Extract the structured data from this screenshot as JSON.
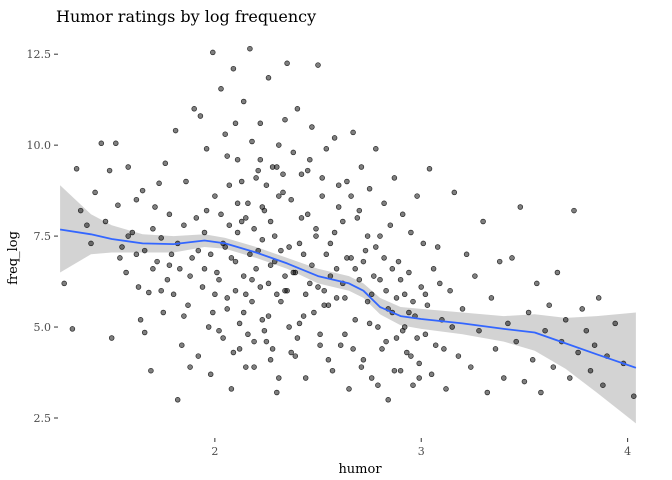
{
  "chart_data": {
    "type": "scatter",
    "title": "Humor ratings by log frequency",
    "xlabel": "humor",
    "ylabel": "freq_log",
    "xlim": [
      1.24,
      4.06
    ],
    "ylim": [
      1.95,
      13.0
    ],
    "x_ticks": [
      {
        "value": 2,
        "label": "2"
      },
      {
        "value": 3,
        "label": "3"
      },
      {
        "value": 4,
        "label": "4"
      }
    ],
    "y_ticks": [
      {
        "value": 2.5,
        "label": "2.5"
      },
      {
        "value": 5.0,
        "label": "5.0"
      },
      {
        "value": 7.5,
        "label": "7.5"
      },
      {
        "value": 10.0,
        "label": "10.0"
      },
      {
        "value": 12.5,
        "label": "12.5"
      }
    ],
    "grid": false,
    "colors": {
      "points_fill": "#000000",
      "points_stroke": "#000000",
      "smooth_line": "#3366FF",
      "ribbon": "#c8c8c8"
    },
    "smooth_line": [
      {
        "x": 1.25,
        "y": 7.68,
        "lo": 6.5,
        "hi": 8.9
      },
      {
        "x": 1.4,
        "y": 7.55,
        "lo": 7.0,
        "hi": 8.1
      },
      {
        "x": 1.5,
        "y": 7.42,
        "lo": 7.05,
        "hi": 7.8
      },
      {
        "x": 1.65,
        "y": 7.3,
        "lo": 7.05,
        "hi": 7.55
      },
      {
        "x": 1.8,
        "y": 7.28,
        "lo": 7.05,
        "hi": 7.5
      },
      {
        "x": 1.95,
        "y": 7.38,
        "lo": 7.2,
        "hi": 7.55
      },
      {
        "x": 2.05,
        "y": 7.3,
        "lo": 7.15,
        "hi": 7.45
      },
      {
        "x": 2.2,
        "y": 7.05,
        "lo": 6.9,
        "hi": 7.2
      },
      {
        "x": 2.35,
        "y": 6.75,
        "lo": 6.6,
        "hi": 6.9
      },
      {
        "x": 2.5,
        "y": 6.4,
        "lo": 6.2,
        "hi": 6.6
      },
      {
        "x": 2.65,
        "y": 6.2,
        "lo": 6.0,
        "hi": 6.4
      },
      {
        "x": 2.72,
        "y": 6.0,
        "lo": 5.8,
        "hi": 6.2
      },
      {
        "x": 2.8,
        "y": 5.55,
        "lo": 5.35,
        "hi": 5.8
      },
      {
        "x": 2.9,
        "y": 5.3,
        "lo": 5.05,
        "hi": 5.55
      },
      {
        "x": 3.0,
        "y": 5.22,
        "lo": 4.95,
        "hi": 5.5
      },
      {
        "x": 3.2,
        "y": 5.1,
        "lo": 4.8,
        "hi": 5.4
      },
      {
        "x": 3.4,
        "y": 4.95,
        "lo": 4.6,
        "hi": 5.3
      },
      {
        "x": 3.55,
        "y": 4.85,
        "lo": 4.35,
        "hi": 5.35
      },
      {
        "x": 3.7,
        "y": 4.55,
        "lo": 3.85,
        "hi": 5.25
      },
      {
        "x": 3.85,
        "y": 4.25,
        "lo": 3.2,
        "hi": 5.3
      },
      {
        "x": 4.04,
        "y": 3.88,
        "lo": 2.35,
        "hi": 5.4
      }
    ],
    "points": [
      [
        1.27,
        6.2
      ],
      [
        1.31,
        4.95
      ],
      [
        1.33,
        9.35
      ],
      [
        1.35,
        8.2
      ],
      [
        1.38,
        7.8
      ],
      [
        1.4,
        7.3
      ],
      [
        1.42,
        8.7
      ],
      [
        1.45,
        10.05
      ],
      [
        1.47,
        7.9
      ],
      [
        1.49,
        9.3
      ],
      [
        1.5,
        4.7
      ],
      [
        1.52,
        10.05
      ],
      [
        1.53,
        8.35
      ],
      [
        1.55,
        7.2
      ],
      [
        1.57,
        6.5
      ],
      [
        1.58,
        9.4
      ],
      [
        1.6,
        7.6
      ],
      [
        1.62,
        8.5
      ],
      [
        1.63,
        6.1
      ],
      [
        1.64,
        5.2
      ],
      [
        1.65,
        8.75
      ],
      [
        1.66,
        4.85
      ],
      [
        1.68,
        5.95
      ],
      [
        1.69,
        3.8
      ],
      [
        1.7,
        7.7
      ],
      [
        1.71,
        8.3
      ],
      [
        1.72,
        6.8
      ],
      [
        1.73,
        8.95
      ],
      [
        1.74,
        7.45
      ],
      [
        1.75,
        5.4
      ],
      [
        1.76,
        9.5
      ],
      [
        1.77,
        6.3
      ],
      [
        1.78,
        8.1
      ],
      [
        1.79,
        7.0
      ],
      [
        1.8,
        5.9
      ],
      [
        1.81,
        10.4
      ],
      [
        1.82,
        3.0
      ],
      [
        1.83,
        6.6
      ],
      [
        1.84,
        4.5
      ],
      [
        1.85,
        7.8
      ],
      [
        1.86,
        9.0
      ],
      [
        1.87,
        5.6
      ],
      [
        1.88,
        3.9
      ],
      [
        1.89,
        6.9
      ],
      [
        1.9,
        11.0
      ],
      [
        1.91,
        8.0
      ],
      [
        1.92,
        4.2
      ],
      [
        1.93,
        10.8
      ],
      [
        1.94,
        6.1
      ],
      [
        1.95,
        7.6
      ],
      [
        1.96,
        9.9
      ],
      [
        1.97,
        5.0
      ],
      [
        1.98,
        3.7
      ],
      [
        1.99,
        12.55
      ],
      [
        2.0,
        8.6
      ],
      [
        2.01,
        6.5
      ],
      [
        2.02,
        4.9
      ],
      [
        2.03,
        11.55
      ],
      [
        2.04,
        7.3
      ],
      [
        2.05,
        10.3
      ],
      [
        2.06,
        5.5
      ],
      [
        2.07,
        8.9
      ],
      [
        2.08,
        3.3
      ],
      [
        2.09,
        12.1
      ],
      [
        2.1,
        6.8
      ],
      [
        2.11,
        9.6
      ],
      [
        2.12,
        4.4
      ],
      [
        2.13,
        7.9
      ],
      [
        2.14,
        11.2
      ],
      [
        2.15,
        5.9
      ],
      [
        2.16,
        8.4
      ],
      [
        2.17,
        12.65
      ],
      [
        2.18,
        6.3
      ],
      [
        2.19,
        3.9
      ],
      [
        2.2,
        9.1
      ],
      [
        2.21,
        7.1
      ],
      [
        2.22,
        10.6
      ],
      [
        2.23,
        5.2
      ],
      [
        2.24,
        8.2
      ],
      [
        2.25,
        4.6
      ],
      [
        2.26,
        11.85
      ],
      [
        2.27,
        6.7
      ],
      [
        2.28,
        9.4
      ],
      [
        2.29,
        7.5
      ],
      [
        2.3,
        3.2
      ],
      [
        2.31,
        10.0
      ],
      [
        2.32,
        5.7
      ],
      [
        2.33,
        8.7
      ],
      [
        2.34,
        6.0
      ],
      [
        2.35,
        12.25
      ],
      [
        2.36,
        7.2
      ],
      [
        2.37,
        4.3
      ],
      [
        2.38,
        9.8
      ],
      [
        2.39,
        6.5
      ],
      [
        2.4,
        11.0
      ],
      [
        2.41,
        5.1
      ],
      [
        2.42,
        8.0
      ],
      [
        2.43,
        7.0
      ],
      [
        2.44,
        3.6
      ],
      [
        2.45,
        9.3
      ],
      [
        2.46,
        6.2
      ],
      [
        2.47,
        10.5
      ],
      [
        2.48,
        5.4
      ],
      [
        2.49,
        7.7
      ],
      [
        2.5,
        12.2
      ],
      [
        2.51,
        4.8
      ],
      [
        2.52,
        8.6
      ],
      [
        2.53,
        6.0
      ],
      [
        2.54,
        9.9
      ],
      [
        2.55,
        5.6
      ],
      [
        2.56,
        7.3
      ],
      [
        2.57,
        3.8
      ],
      [
        2.58,
        10.2
      ],
      [
        2.59,
        6.6
      ],
      [
        2.6,
        8.3
      ],
      [
        2.61,
        4.5
      ],
      [
        2.62,
        7.9
      ],
      [
        2.63,
        5.8
      ],
      [
        2.64,
        9.0
      ],
      [
        2.65,
        3.3
      ],
      [
        2.66,
        6.9
      ],
      [
        2.67,
        10.35
      ],
      [
        2.68,
        5.2
      ],
      [
        2.69,
        8.0
      ],
      [
        2.7,
        6.3
      ],
      [
        2.71,
        9.4
      ],
      [
        2.72,
        4.1
      ],
      [
        2.73,
        7.1
      ],
      [
        2.74,
        5.7
      ],
      [
        2.75,
        8.8
      ],
      [
        2.76,
        3.6
      ],
      [
        2.77,
        6.4
      ],
      [
        2.78,
        9.9
      ],
      [
        2.79,
        5.0
      ],
      [
        2.8,
        7.5
      ],
      [
        2.81,
        4.4
      ],
      [
        2.82,
        8.4
      ],
      [
        2.83,
        6.0
      ],
      [
        2.84,
        3.0
      ],
      [
        2.85,
        7.8
      ],
      [
        2.86,
        5.4
      ],
      [
        2.87,
        9.1
      ],
      [
        2.88,
        4.7
      ],
      [
        2.89,
        6.8
      ],
      [
        2.9,
        3.8
      ],
      [
        2.91,
        8.1
      ],
      [
        2.92,
        5.9
      ],
      [
        2.93,
        4.3
      ],
      [
        2.94,
        6.5
      ],
      [
        2.95,
        7.6
      ],
      [
        2.96,
        3.4
      ],
      [
        2.97,
        5.3
      ],
      [
        2.98,
        8.6
      ],
      [
        2.99,
        4.0
      ],
      [
        3.0,
        6.1
      ],
      [
        3.01,
        7.3
      ],
      [
        3.02,
        4.8
      ],
      [
        3.03,
        5.6
      ],
      [
        3.04,
        9.35
      ],
      [
        3.05,
        3.7
      ],
      [
        3.06,
        6.6
      ],
      [
        3.07,
        4.5
      ],
      [
        3.08,
        7.2
      ],
      [
        3.1,
        5.2
      ],
      [
        3.12,
        3.3
      ],
      [
        3.14,
        6.0
      ],
      [
        3.16,
        8.7
      ],
      [
        3.18,
        4.2
      ],
      [
        3.2,
        5.5
      ],
      [
        3.22,
        7.0
      ],
      [
        3.24,
        3.9
      ],
      [
        3.26,
        6.4
      ],
      [
        3.28,
        4.9
      ],
      [
        3.3,
        7.9
      ],
      [
        3.32,
        3.2
      ],
      [
        3.34,
        5.8
      ],
      [
        3.36,
        4.4
      ],
      [
        3.38,
        6.8
      ],
      [
        3.4,
        3.6
      ],
      [
        3.42,
        5.1
      ],
      [
        3.44,
        6.9
      ],
      [
        3.46,
        4.6
      ],
      [
        3.48,
        8.3
      ],
      [
        3.5,
        3.5
      ],
      [
        3.52,
        5.4
      ],
      [
        3.54,
        4.1
      ],
      [
        3.56,
        6.2
      ],
      [
        3.58,
        3.2
      ],
      [
        3.6,
        4.9
      ],
      [
        3.62,
        5.6
      ],
      [
        3.64,
        3.9
      ],
      [
        3.66,
        6.5
      ],
      [
        3.68,
        4.6
      ],
      [
        3.7,
        5.2
      ],
      [
        3.72,
        3.6
      ],
      [
        3.74,
        8.2
      ],
      [
        3.76,
        4.3
      ],
      [
        3.78,
        5.5
      ],
      [
        3.8,
        4.9
      ],
      [
        3.82,
        3.8
      ],
      [
        3.84,
        4.5
      ],
      [
        3.86,
        5.8
      ],
      [
        3.88,
        3.4
      ],
      [
        3.9,
        4.2
      ],
      [
        3.94,
        5.1
      ],
      [
        3.98,
        4.0
      ],
      [
        4.03,
        3.1
      ],
      [
        2.05,
        7.2
      ],
      [
        2.08,
        6.9
      ],
      [
        2.11,
        7.6
      ],
      [
        2.14,
        6.4
      ],
      [
        2.17,
        7.0
      ],
      [
        2.2,
        6.6
      ],
      [
        2.23,
        7.4
      ],
      [
        2.26,
        6.2
      ],
      [
        2.29,
        6.8
      ],
      [
        2.32,
        7.1
      ],
      [
        2.35,
        6.0
      ],
      [
        2.38,
        6.5
      ],
      [
        2.41,
        7.3
      ],
      [
        2.44,
        5.9
      ],
      [
        2.47,
        6.7
      ],
      [
        2.5,
        6.1
      ],
      [
        2.53,
        5.6
      ],
      [
        2.56,
        6.4
      ],
      [
        2.59,
        5.8
      ],
      [
        2.62,
        6.2
      ],
      [
        1.98,
        7.0
      ],
      [
        2.02,
        6.3
      ],
      [
        2.06,
        5.8
      ],
      [
        2.1,
        6.0
      ],
      [
        2.14,
        5.4
      ],
      [
        2.18,
        5.7
      ],
      [
        2.22,
        6.1
      ],
      [
        2.26,
        5.3
      ],
      [
        2.3,
        5.9
      ],
      [
        2.34,
        6.4
      ],
      [
        1.95,
        6.6
      ],
      [
        1.99,
        5.4
      ],
      [
        2.03,
        8.1
      ],
      [
        2.07,
        7.8
      ],
      [
        2.11,
        8.4
      ],
      [
        2.15,
        8.0
      ],
      [
        2.19,
        7.7
      ],
      [
        2.23,
        8.3
      ],
      [
        2.27,
        7.9
      ],
      [
        2.31,
        8.6
      ],
      [
        1.92,
        7.1
      ],
      [
        1.96,
        8.2
      ],
      [
        2.0,
        5.9
      ],
      [
        2.04,
        4.7
      ],
      [
        2.12,
        5.1
      ],
      [
        2.16,
        4.8
      ],
      [
        2.24,
        4.9
      ],
      [
        2.28,
        4.4
      ],
      [
        2.36,
        5.0
      ],
      [
        2.4,
        4.7
      ],
      [
        2.13,
        9.0
      ],
      [
        2.21,
        9.3
      ],
      [
        2.25,
        8.9
      ],
      [
        2.33,
        9.2
      ],
      [
        2.37,
        8.5
      ],
      [
        2.45,
        8.1
      ],
      [
        2.49,
        7.5
      ],
      [
        2.54,
        7.0
      ],
      [
        2.58,
        7.6
      ],
      [
        2.64,
        6.9
      ],
      [
        2.68,
        6.6
      ],
      [
        2.72,
        6.8
      ],
      [
        2.76,
        5.9
      ],
      [
        2.8,
        6.3
      ],
      [
        2.84,
        5.5
      ],
      [
        2.88,
        5.8
      ],
      [
        2.92,
        5.0
      ],
      [
        2.96,
        5.7
      ],
      [
        3.09,
        6.2
      ],
      [
        3.15,
        5.0
      ],
      [
        1.88,
        6.4
      ],
      [
        1.85,
        5.3
      ],
      [
        1.82,
        7.3
      ],
      [
        1.78,
        6.7
      ],
      [
        1.74,
        6.0
      ],
      [
        1.7,
        6.6
      ],
      [
        1.66,
        7.1
      ],
      [
        1.62,
        7.0
      ],
      [
        1.58,
        7.5
      ],
      [
        1.54,
        6.9
      ],
      [
        2.06,
        9.7
      ],
      [
        2.1,
        10.6
      ],
      [
        2.18,
        10.1
      ],
      [
        2.22,
        9.6
      ],
      [
        2.3,
        9.4
      ],
      [
        2.34,
        10.7
      ],
      [
        2.42,
        9.2
      ],
      [
        2.46,
        9.6
      ],
      [
        2.52,
        9.1
      ],
      [
        2.6,
        8.9
      ],
      [
        2.66,
        8.6
      ],
      [
        2.7,
        8.2
      ],
      [
        2.74,
        7.5
      ],
      [
        2.78,
        7.2
      ],
      [
        2.82,
        6.9
      ],
      [
        2.86,
        6.6
      ],
      [
        2.9,
        6.3
      ],
      [
        2.94,
        5.4
      ],
      [
        2.98,
        4.7
      ],
      [
        3.02,
        5.9
      ],
      [
        2.09,
        4.3
      ],
      [
        2.15,
        3.9
      ],
      [
        2.19,
        4.6
      ],
      [
        2.27,
        4.1
      ],
      [
        2.31,
        3.6
      ],
      [
        2.39,
        4.2
      ],
      [
        2.43,
        5.3
      ],
      [
        2.51,
        4.5
      ],
      [
        2.55,
        4.1
      ],
      [
        2.63,
        4.8
      ],
      [
        2.67,
        4.4
      ],
      [
        2.71,
        3.9
      ],
      [
        2.75,
        5.1
      ],
      [
        2.79,
        3.4
      ],
      [
        2.83,
        4.6
      ],
      [
        2.87,
        3.8
      ],
      [
        2.91,
        4.9
      ],
      [
        2.95,
        4.2
      ],
      [
        2.99,
        3.6
      ],
      [
        3.11,
        4.4
      ]
    ]
  }
}
